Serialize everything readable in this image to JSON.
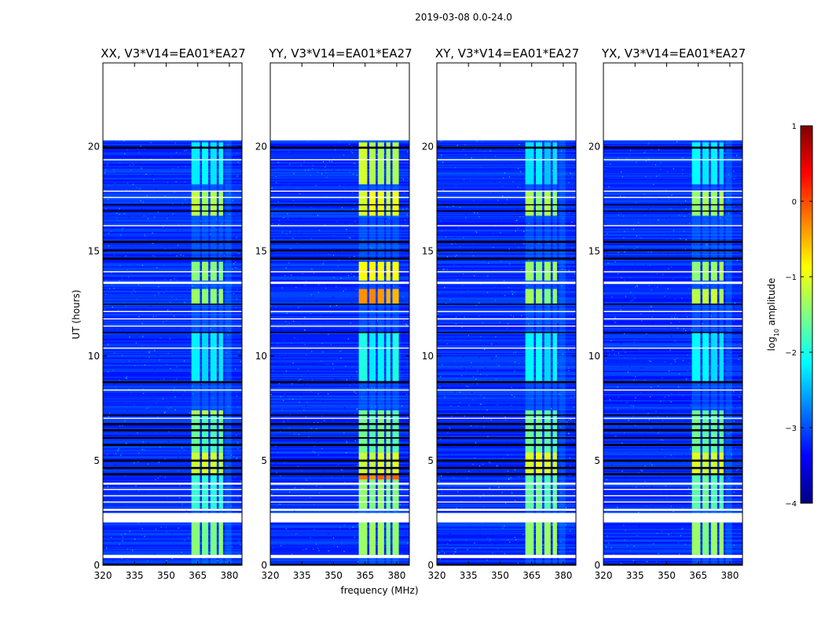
{
  "chart_data": {
    "type": "heatmap",
    "suptitle": "2019-03-08 0.0-24.0",
    "xlabel": "frequency (MHz)",
    "ylabel": "UT (hours)",
    "xlim": [
      320,
      386
    ],
    "ylim": [
      0,
      24
    ],
    "xticks": [
      320,
      335,
      350,
      365,
      380
    ],
    "yticks": [
      0,
      5,
      10,
      15,
      20
    ],
    "colorbar": {
      "label": "log10 amplitude",
      "range": [
        -4,
        1
      ],
      "ticks": [
        1,
        0,
        -1,
        -2,
        -3,
        -4
      ],
      "colormap": [
        "#00007f",
        "#0000ff",
        "#007fff",
        "#00ffff",
        "#7fff7f",
        "#ffff00",
        "#ff7f00",
        "#ff0000",
        "#7f0000"
      ]
    },
    "blank_intervals_hours": [
      [
        0.35,
        0.5
      ],
      [
        2.05,
        2.5
      ],
      [
        2.62,
        2.7
      ],
      [
        3.0,
        3.05
      ],
      [
        3.3,
        3.35
      ],
      [
        3.6,
        3.65
      ],
      [
        3.85,
        3.95
      ],
      [
        7.0,
        7.05
      ],
      [
        8.35,
        8.4
      ],
      [
        10.35,
        10.4
      ],
      [
        11.4,
        11.45
      ],
      [
        11.75,
        11.8
      ],
      [
        12.1,
        12.15
      ],
      [
        13.45,
        13.55
      ],
      [
        14.0,
        14.05
      ],
      [
        16.2,
        16.25
      ],
      [
        17.55,
        17.6
      ],
      [
        17.85,
        17.9
      ],
      [
        19.35,
        19.4
      ],
      [
        20.3,
        24.0
      ]
    ],
    "flagged_intervals_hours": [
      [
        0.0,
        0.08
      ],
      [
        4.3,
        4.4
      ],
      [
        4.6,
        4.7
      ],
      [
        4.95,
        5.05
      ],
      [
        5.7,
        5.8
      ],
      [
        6.05,
        6.12
      ],
      [
        6.4,
        6.5
      ],
      [
        6.7,
        6.8
      ],
      [
        7.15,
        7.2
      ],
      [
        8.7,
        8.8
      ],
      [
        11.1,
        11.15
      ],
      [
        12.45,
        12.5
      ],
      [
        14.6,
        14.7
      ],
      [
        15.0,
        15.08
      ],
      [
        15.4,
        15.5
      ],
      [
        16.9,
        16.95
      ],
      [
        17.2,
        17.25
      ],
      [
        19.9,
        20.0
      ],
      [
        20.3,
        20.45
      ],
      [
        20.6,
        20.7
      ],
      [
        20.9,
        21.0
      ]
    ],
    "rfi_band_mhz": [
      362,
      381
    ],
    "rfi_channels_mhz": [
      [
        362,
        366
      ],
      [
        367,
        370
      ],
      [
        371,
        374
      ],
      [
        375,
        377
      ],
      [
        378,
        381
      ]
    ],
    "panels": [
      {
        "title": "XX, V3*V14=EA01*EA27",
        "rfi_segments": [
          {
            "t": [
              0.5,
              2.05
            ],
            "level": -1.5,
            "band": [
              362,
              377
            ]
          },
          {
            "t": [
              2.7,
              4.3
            ],
            "level": -1.9,
            "band": [
              362,
              377
            ]
          },
          {
            "t": [
              4.3,
              5.4
            ],
            "level": -1.1,
            "band": [
              362,
              377
            ]
          },
          {
            "t": [
              5.4,
              7.2
            ],
            "level": -1.7,
            "band": [
              362,
              377
            ]
          },
          {
            "t": [
              7.2,
              7.4
            ],
            "level": -1.3,
            "band": [
              362,
              377
            ]
          },
          {
            "t": [
              8.8,
              11.1
            ],
            "level": -2.2,
            "band": [
              362,
              377
            ]
          },
          {
            "t": [
              12.5,
              13.2
            ],
            "level": -1.4,
            "band": [
              362,
              377
            ]
          },
          {
            "t": [
              13.6,
              14.5
            ],
            "level": -1.5,
            "band": [
              362,
              377
            ]
          },
          {
            "t": [
              16.7,
              17.9
            ],
            "level": -1.3,
            "band": [
              362,
              377
            ]
          },
          {
            "t": [
              18.2,
              20.2
            ],
            "level": -2.2,
            "band": [
              362,
              377
            ]
          }
        ]
      },
      {
        "title": "YY, V3*V14=EA01*EA27",
        "rfi_segments": [
          {
            "t": [
              0.5,
              2.05
            ],
            "level": -1.4,
            "band": [
              362,
              381
            ]
          },
          {
            "t": [
              2.7,
              4.3
            ],
            "level": -1.5,
            "band": [
              362,
              381
            ]
          },
          {
            "t": [
              4.1,
              4.3
            ],
            "level": -0.2,
            "band": [
              362,
              381
            ]
          },
          {
            "t": [
              4.3,
              5.4
            ],
            "level": -1.1,
            "band": [
              362,
              381
            ]
          },
          {
            "t": [
              5.4,
              7.4
            ],
            "level": -1.6,
            "band": [
              362,
              381
            ]
          },
          {
            "t": [
              8.8,
              11.1
            ],
            "level": -2.1,
            "band": [
              362,
              381
            ]
          },
          {
            "t": [
              12.5,
              13.2
            ],
            "level": -0.4,
            "band": [
              362,
              381
            ]
          },
          {
            "t": [
              13.6,
              14.5
            ],
            "level": -0.8,
            "band": [
              362,
              381
            ]
          },
          {
            "t": [
              16.7,
              17.9
            ],
            "level": -1.0,
            "band": [
              362,
              381
            ]
          },
          {
            "t": [
              18.2,
              20.2
            ],
            "level": -1.2,
            "band": [
              362,
              381
            ]
          }
        ]
      },
      {
        "title": "XY, V3*V14=EA01*EA27",
        "rfi_segments": [
          {
            "t": [
              0.5,
              2.05
            ],
            "level": -1.4,
            "band": [
              362,
              377
            ]
          },
          {
            "t": [
              2.7,
              4.3
            ],
            "level": -1.7,
            "band": [
              362,
              377
            ]
          },
          {
            "t": [
              4.3,
              5.4
            ],
            "level": -1.0,
            "band": [
              362,
              377
            ]
          },
          {
            "t": [
              5.4,
              7.4
            ],
            "level": -1.7,
            "band": [
              362,
              377
            ]
          },
          {
            "t": [
              8.8,
              11.1
            ],
            "level": -2.2,
            "band": [
              362,
              377
            ]
          },
          {
            "t": [
              12.5,
              13.2
            ],
            "level": -1.4,
            "band": [
              362,
              377
            ]
          },
          {
            "t": [
              13.6,
              14.5
            ],
            "level": -1.4,
            "band": [
              362,
              377
            ]
          },
          {
            "t": [
              16.7,
              17.9
            ],
            "level": -1.3,
            "band": [
              362,
              377
            ]
          },
          {
            "t": [
              18.2,
              20.2
            ],
            "level": -2.3,
            "band": [
              362,
              377
            ]
          }
        ]
      },
      {
        "title": "YX, V3*V14=EA01*EA27",
        "rfi_segments": [
          {
            "t": [
              0.5,
              2.05
            ],
            "level": -1.4,
            "band": [
              362,
              377
            ]
          },
          {
            "t": [
              2.7,
              4.3
            ],
            "level": -1.7,
            "band": [
              362,
              377
            ]
          },
          {
            "t": [
              4.3,
              5.4
            ],
            "level": -1.0,
            "band": [
              362,
              377
            ]
          },
          {
            "t": [
              5.4,
              7.4
            ],
            "level": -1.7,
            "band": [
              362,
              377
            ]
          },
          {
            "t": [
              8.8,
              11.1
            ],
            "level": -2.2,
            "band": [
              362,
              377
            ]
          },
          {
            "t": [
              12.5,
              13.2
            ],
            "level": -1.2,
            "band": [
              362,
              377
            ]
          },
          {
            "t": [
              13.6,
              14.5
            ],
            "level": -1.4,
            "band": [
              362,
              377
            ]
          },
          {
            "t": [
              16.7,
              17.9
            ],
            "level": -1.3,
            "band": [
              362,
              377
            ]
          },
          {
            "t": [
              18.2,
              20.2
            ],
            "level": -2.2,
            "band": [
              362,
              377
            ]
          }
        ]
      }
    ]
  }
}
